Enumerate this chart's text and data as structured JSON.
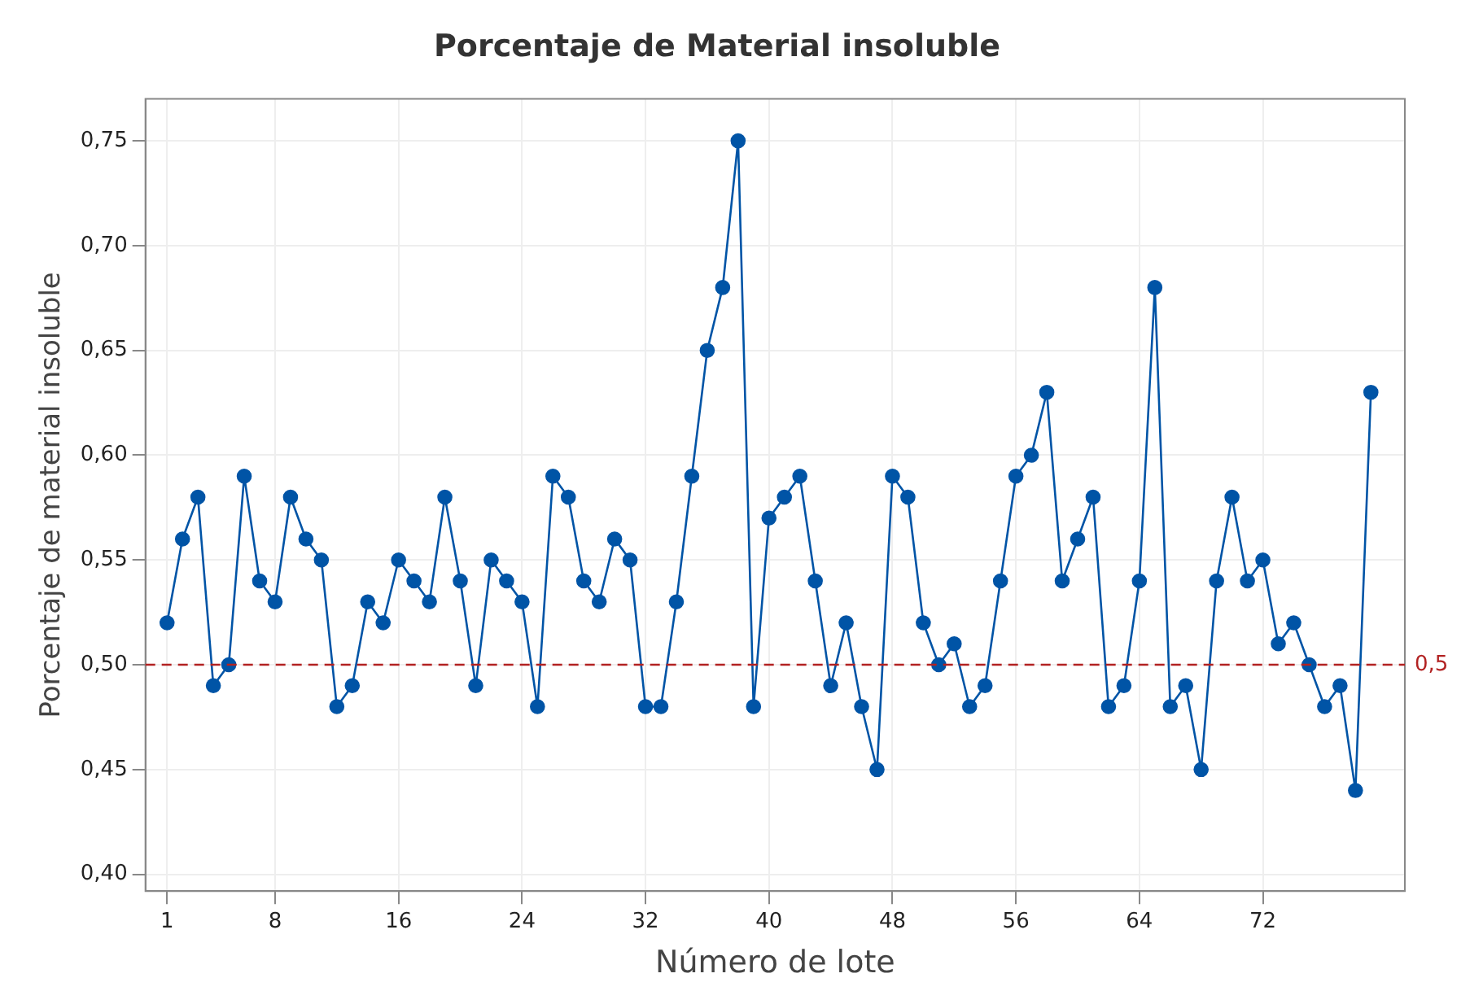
{
  "chart_data": {
    "type": "line",
    "title": "Porcentaje de Material insoluble",
    "xlabel": "Número de lote",
    "ylabel": "Porcentaje de material insoluble",
    "x": [
      1,
      2,
      3,
      4,
      5,
      6,
      7,
      8,
      9,
      10,
      11,
      12,
      13,
      14,
      15,
      16,
      17,
      18,
      19,
      20,
      21,
      22,
      23,
      24,
      25,
      26,
      27,
      28,
      29,
      30,
      31,
      32,
      33,
      34,
      35,
      36,
      37,
      38,
      39,
      40,
      41,
      42,
      43,
      44,
      45,
      46,
      47,
      48,
      49,
      50,
      51,
      52,
      53,
      54,
      55,
      56,
      57,
      58,
      59,
      60,
      61,
      62,
      63,
      64,
      65,
      66,
      67,
      68,
      69,
      70,
      71,
      72,
      73,
      74,
      75,
      76,
      77,
      78,
      79
    ],
    "series": [
      {
        "color": "#0054a6",
        "values": [
          0.52,
          0.56,
          0.58,
          0.49,
          0.5,
          0.59,
          0.54,
          0.53,
          0.58,
          0.56,
          0.55,
          0.48,
          0.49,
          0.53,
          0.52,
          0.55,
          0.54,
          0.53,
          0.58,
          0.54,
          0.49,
          0.55,
          0.54,
          0.53,
          0.48,
          0.59,
          0.58,
          0.54,
          0.53,
          0.56,
          0.55,
          0.48,
          0.48,
          0.53,
          0.59,
          0.65,
          0.68,
          0.75,
          0.48,
          0.57,
          0.58,
          0.59,
          0.54,
          0.49,
          0.52,
          0.48,
          0.45,
          0.59,
          0.58,
          0.52,
          0.5,
          0.51,
          0.48,
          0.49,
          0.54,
          0.59,
          0.6,
          0.63,
          0.54,
          0.56,
          0.58,
          0.48,
          0.49,
          0.54,
          0.68,
          0.48,
          0.49,
          0.45,
          0.54,
          0.58,
          0.54,
          0.55,
          0.51,
          0.52,
          0.5,
          0.48,
          0.49,
          0.44,
          0.63
        ]
      }
    ],
    "xlim": [
      -0.4,
      81.2
    ],
    "xticks": [
      1,
      8,
      16,
      24,
      32,
      40,
      48,
      56,
      64,
      72
    ],
    "ylim": [
      0.392,
      0.77
    ],
    "yticks": [
      {
        "value": 0.4,
        "label": "0,40"
      },
      {
        "value": 0.45,
        "label": "0,45"
      },
      {
        "value": 0.5,
        "label": "0,50"
      },
      {
        "value": 0.55,
        "label": "0,55"
      },
      {
        "value": 0.6,
        "label": "0,60"
      },
      {
        "value": 0.65,
        "label": "0,65"
      },
      {
        "value": 0.7,
        "label": "0,70"
      },
      {
        "value": 0.75,
        "label": "0,75"
      }
    ],
    "ref_lines": [
      {
        "axis": "y",
        "value": 0.5,
        "label": "0,5",
        "color": "#b22222",
        "line_style": "dashed"
      }
    ],
    "grid": true,
    "legend": false,
    "marker": "circle",
    "line_style": "solid"
  }
}
